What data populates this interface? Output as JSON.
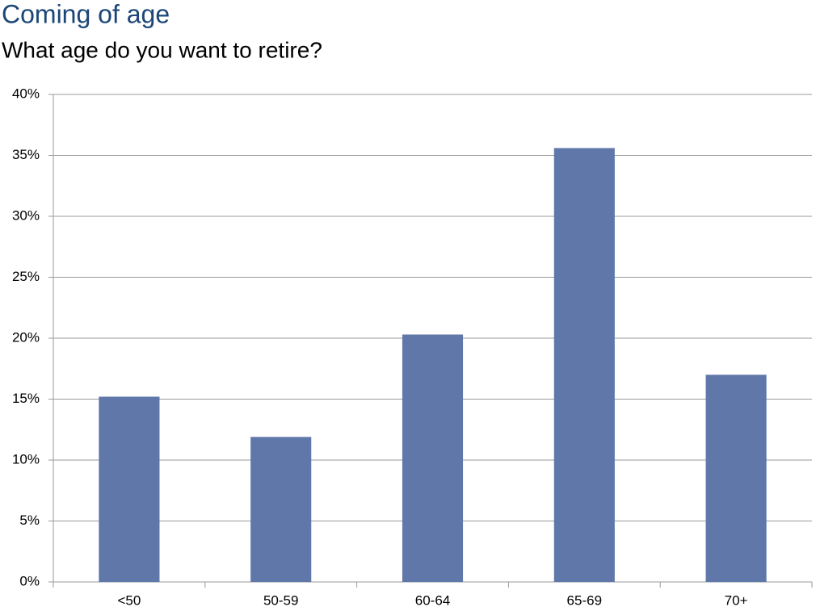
{
  "chart_data": {
    "type": "bar",
    "title": "Coming of age",
    "subtitle": "What age do you want to retire?",
    "categories": [
      "<50",
      "50-59",
      "60-64",
      "65-69",
      "70+"
    ],
    "values": [
      15.2,
      11.9,
      20.3,
      35.6,
      17.0
    ],
    "color": "#6077aa",
    "ylim": [
      0,
      40
    ],
    "yticks": [
      {
        "value": 0,
        "label": "0%"
      },
      {
        "value": 5,
        "label": "5%"
      },
      {
        "value": 10,
        "label": "10%"
      },
      {
        "value": 15,
        "label": "15%"
      },
      {
        "value": 20,
        "label": "20%"
      },
      {
        "value": 25,
        "label": "25%"
      },
      {
        "value": 30,
        "label": "30%"
      },
      {
        "value": 35,
        "label": "35%"
      },
      {
        "value": 40,
        "label": "40%"
      }
    ],
    "grid": true
  }
}
